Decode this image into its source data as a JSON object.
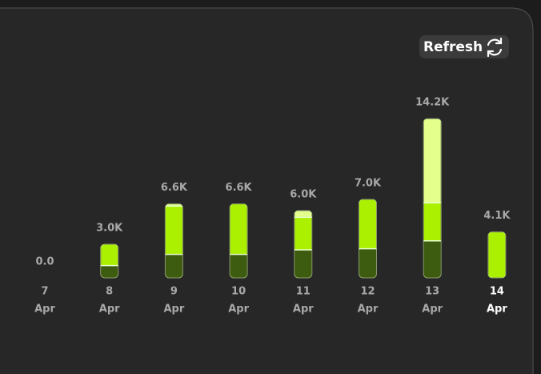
{
  "refresh_button": "Refresh",
  "chart_data": {
    "type": "stacked_bar",
    "categories": [
      "7",
      "8",
      "9",
      "10",
      "11",
      "12",
      "13",
      "14"
    ],
    "sublabels": [
      "Apr",
      "Apr",
      "Apr",
      "Apr",
      "Apr",
      "Apr",
      "Apr",
      "Apr"
    ],
    "series": [
      {
        "color": "#3e5c10",
        "values": [
          0,
          1100,
          2100,
          2100,
          2500,
          2600,
          3300,
          0
        ]
      },
      {
        "color": "#aaf000",
        "values": [
          0,
          1900,
          4300,
          4500,
          2900,
          4400,
          3400,
          4100
        ]
      },
      {
        "color": "#e4ff8c",
        "values": [
          0,
          0,
          200,
          0,
          600,
          0,
          7500,
          0
        ]
      }
    ],
    "value_labels": [
      "0.0",
      "3.0K",
      "6.6K",
      "6.6K",
      "6.0K",
      "7.0K",
      "14.2K",
      "4.1K"
    ],
    "ylim": [
      0,
      15000
    ]
  }
}
